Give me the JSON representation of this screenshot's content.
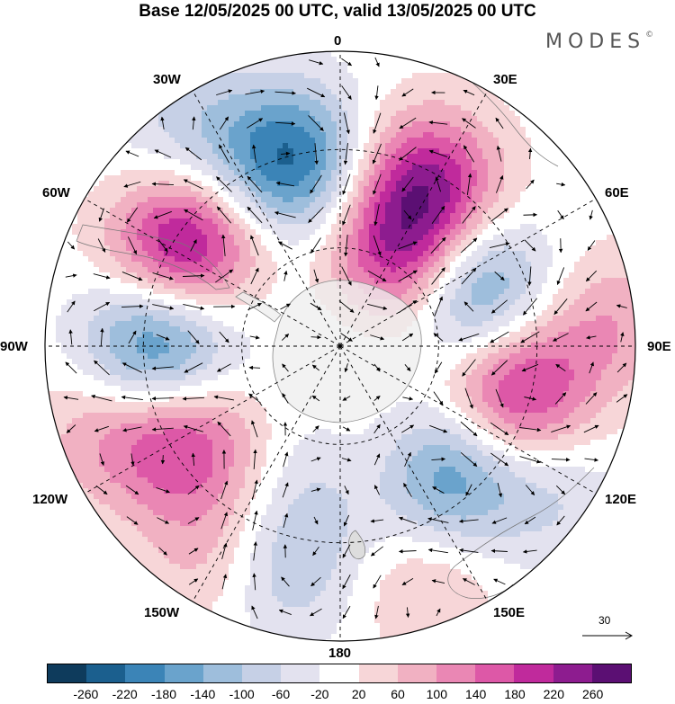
{
  "title": "Base 12/05/2025 00 UTC, valid 13/05/2025 00 UTC",
  "brand": "MODES",
  "brand_mark": "©",
  "longitude_labels": {
    "lon_0": "0",
    "lon_30e": "30E",
    "lon_60e": "60E",
    "lon_90e": "90E",
    "lon_120e": "120E",
    "lon_150e": "150E",
    "lon_180": "180",
    "lon_150w": "150W",
    "lon_120w": "120W",
    "lon_90w": "90W",
    "lon_60w": "60W",
    "lon_30w": "30W"
  },
  "reference_vector": {
    "label": "30"
  },
  "colorbar": {
    "colors": [
      "#0e3b5c",
      "#1b5f8e",
      "#3b84b7",
      "#6aa3cc",
      "#9ebedc",
      "#c6d0e6",
      "#e3e2ef",
      "#ffffff",
      "#f7d6d8",
      "#f1b1c2",
      "#ea87b4",
      "#dd58a7",
      "#c02a9c",
      "#8d1c8f",
      "#5b0f73"
    ],
    "tick_labels": [
      "-260",
      "-220",
      "-180",
      "-140",
      "-100",
      "-60",
      "-20",
      "20",
      "60",
      "100",
      "140",
      "180",
      "220",
      "260"
    ]
  },
  "anomaly_centers": [
    {
      "lon": -15,
      "colat": 0.65,
      "value": -230
    },
    {
      "lon": 28,
      "colat": 0.62,
      "value": 220
    },
    {
      "lon": 65,
      "colat": 0.48,
      "value": -230
    },
    {
      "lon": 38,
      "colat": 0.36,
      "value": 230
    },
    {
      "lon": 105,
      "colat": 0.62,
      "value": 210
    },
    {
      "lon": 142,
      "colat": 0.55,
      "value": -200
    },
    {
      "lon": 168,
      "colat": 0.43,
      "value": 170
    },
    {
      "lon": 179,
      "colat": 0.45,
      "value": -160
    },
    {
      "lon": -122,
      "colat": 0.62,
      "value": 170
    },
    {
      "lon": -90,
      "colat": 0.62,
      "value": -220
    },
    {
      "lon": -57,
      "colat": 0.63,
      "value": 250
    },
    {
      "lon": -150,
      "colat": 0.82,
      "value": 90
    },
    {
      "lon": -165,
      "colat": 0.78,
      "value": -110
    },
    {
      "lon": 160,
      "colat": 0.85,
      "value": 70
    },
    {
      "lon": 125,
      "colat": 0.85,
      "value": -70
    },
    {
      "lon": 85,
      "colat": 0.92,
      "value": 90
    },
    {
      "lon": -110,
      "colat": 0.85,
      "value": 80
    },
    {
      "lon": -35,
      "colat": 0.9,
      "value": -80
    },
    {
      "lon": 0,
      "colat": 0.05,
      "value": -30
    }
  ]
}
